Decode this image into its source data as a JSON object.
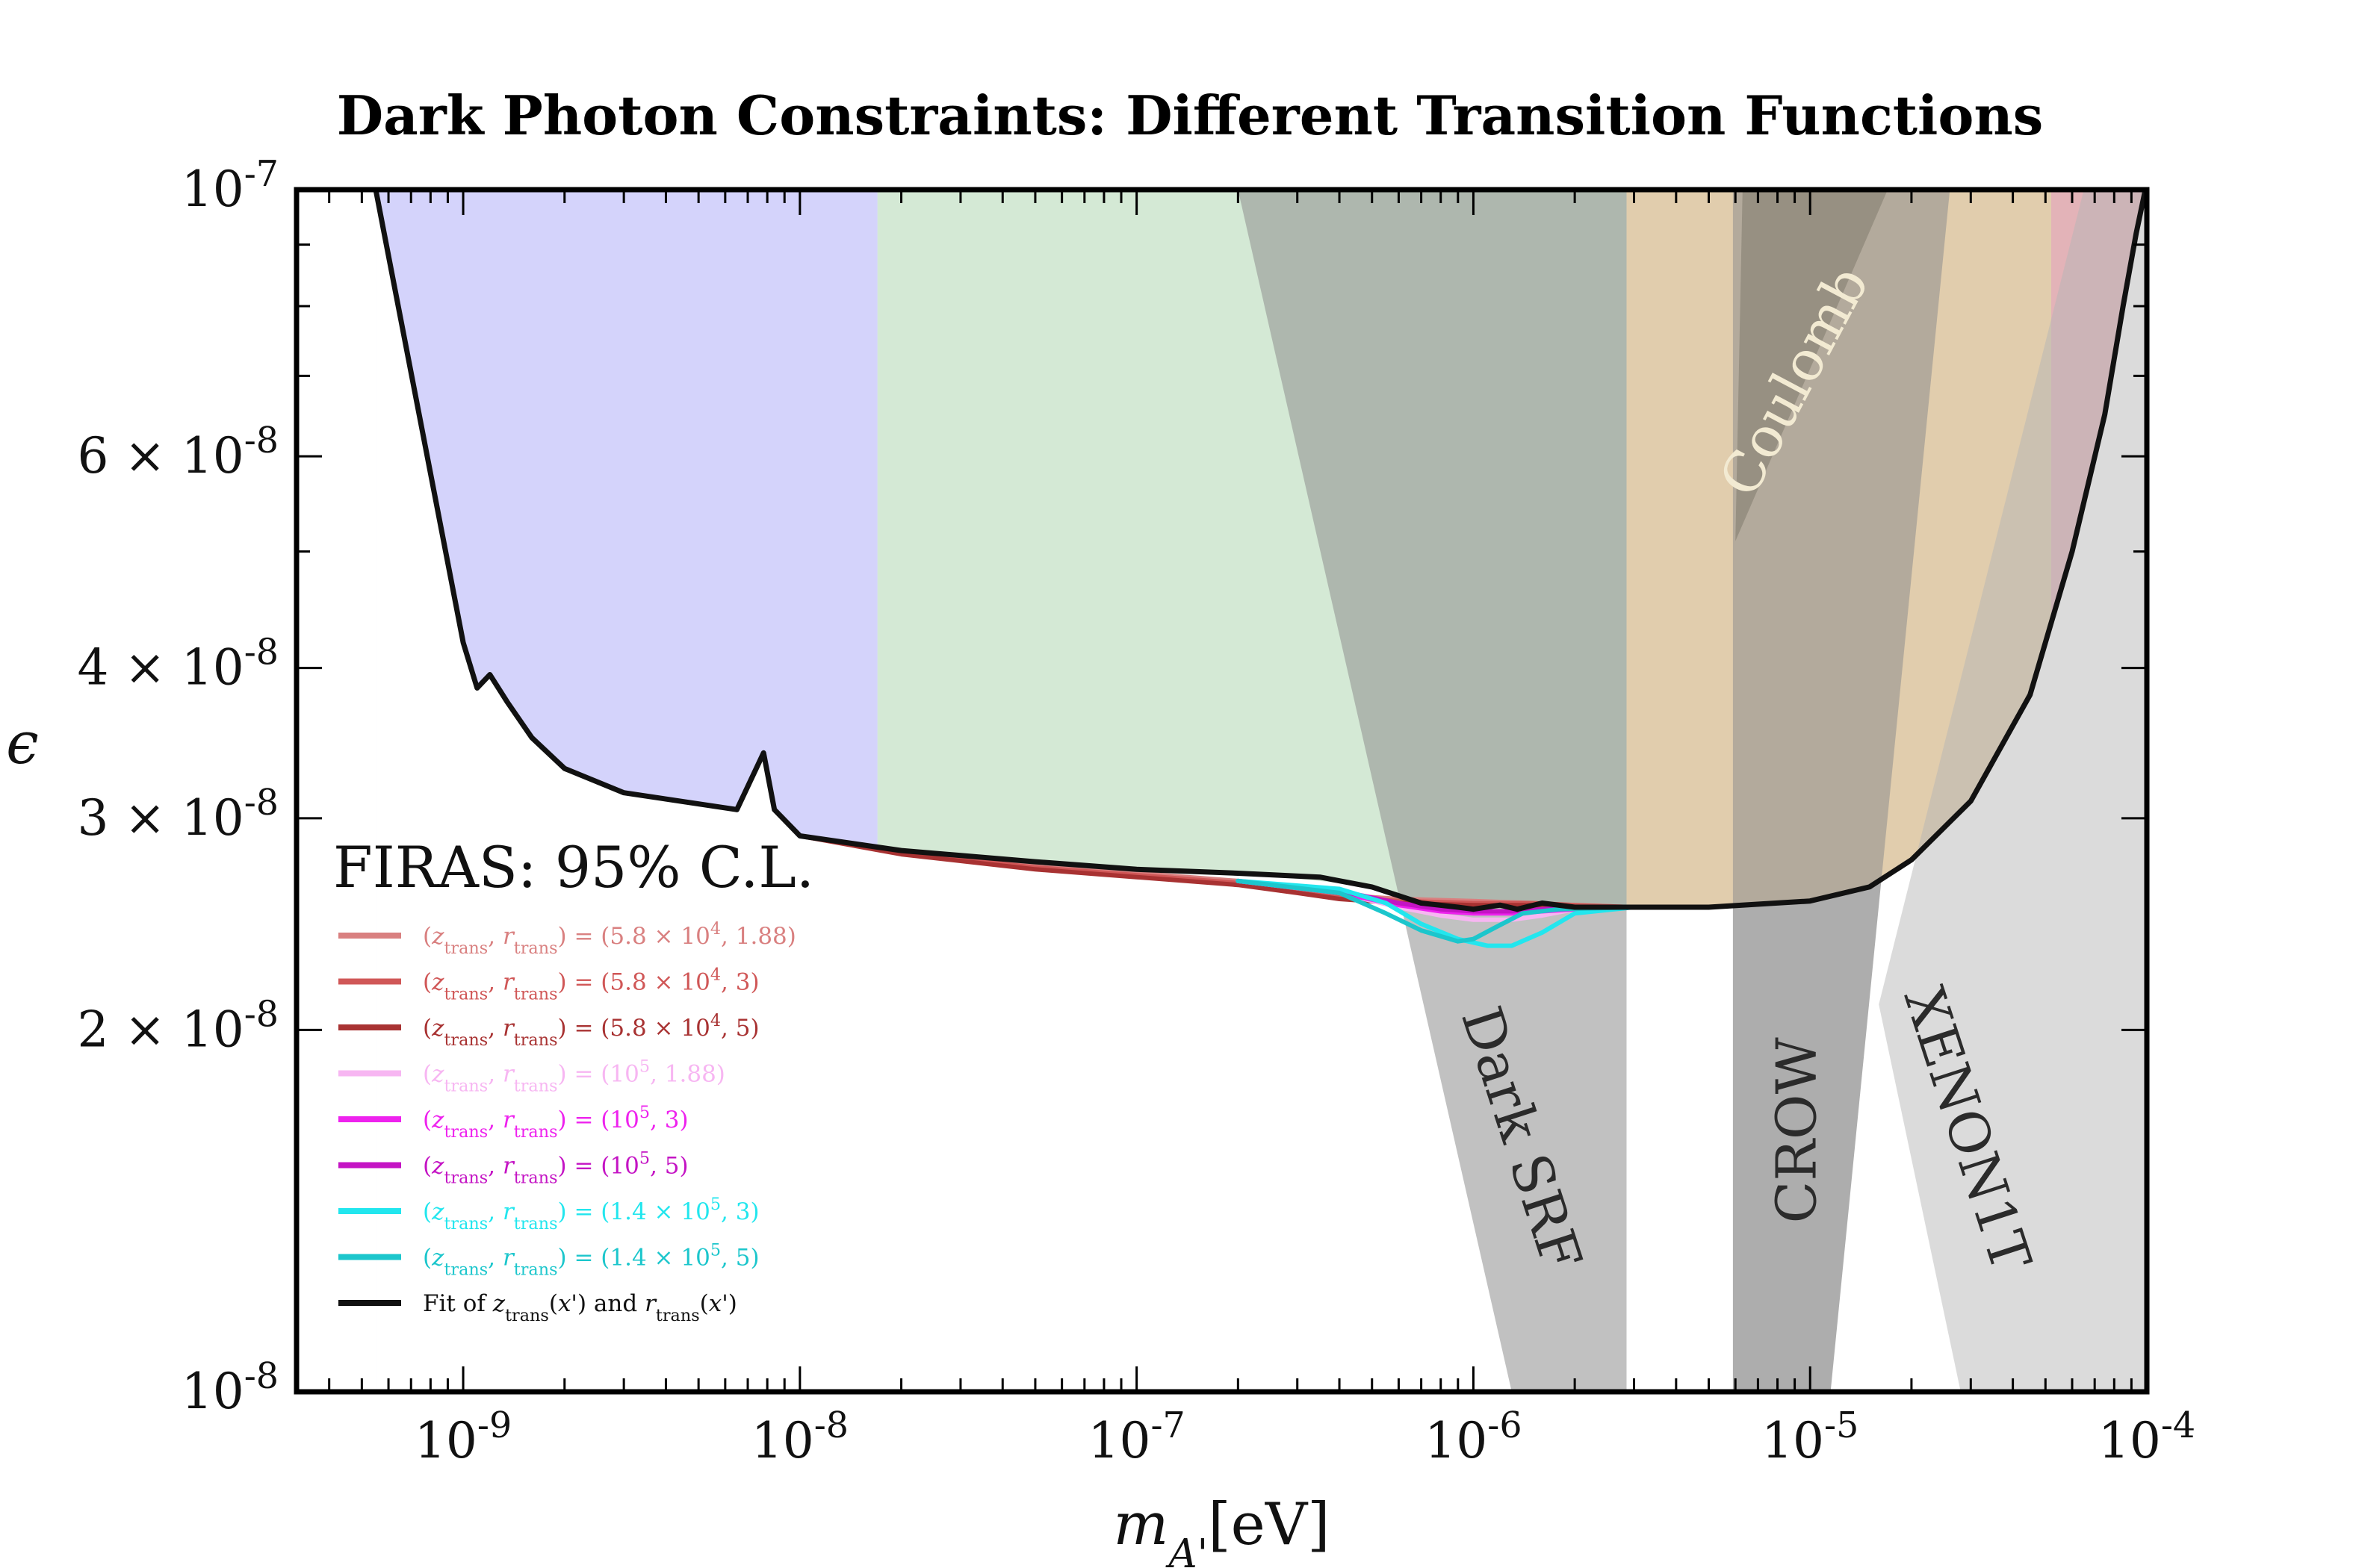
{
  "chart_data": {
    "type": "line",
    "title": "Dark Photon Constraints: Different Transition Functions",
    "xlabel": "m_A'[eV]",
    "ylabel": "ϵ",
    "x_scale": "log",
    "y_scale": "log",
    "xlim": [
      3.2e-10,
      0.0001
    ],
    "ylim": [
      1e-08,
      1e-07
    ],
    "grid": false,
    "x_ticks": [
      {
        "value": 1e-09,
        "label": "10^-9"
      },
      {
        "value": 1e-08,
        "label": "10^-8"
      },
      {
        "value": 1e-07,
        "label": "10^-7"
      },
      {
        "value": 1e-06,
        "label": "10^-6"
      },
      {
        "value": 1e-05,
        "label": "10^-5"
      },
      {
        "value": 0.0001,
        "label": "10^-4"
      }
    ],
    "y_ticks": [
      {
        "value": 1e-08,
        "label": "10^-8"
      },
      {
        "value": 2e-08,
        "label": "2 × 10^-8"
      },
      {
        "value": 3e-08,
        "label": "3 × 10^-8"
      },
      {
        "value": 4e-08,
        "label": "4 × 10^-8"
      },
      {
        "value": 6e-08,
        "label": "6 × 10^-8"
      },
      {
        "value": 1e-07,
        "label": "10^-7"
      }
    ],
    "regions": [
      {
        "id": "blue",
        "color": "#b0aff7",
        "opacity": 0.55,
        "polygon": [
          [
            3.2e-10,
            1e-07
          ],
          [
            1.7e-08,
            1e-07
          ],
          [
            1.7e-08,
            1e-08
          ],
          [
            3.2e-10,
            1e-08
          ]
        ]
      },
      {
        "id": "green",
        "color": "#a9d4ac",
        "opacity": 0.5,
        "polygon": [
          [
            1.7e-08,
            1e-07
          ],
          [
            2.85e-06,
            1e-07
          ],
          [
            2.85e-06,
            1e-08
          ],
          [
            1.7e-08,
            1e-08
          ]
        ]
      },
      {
        "id": "tan",
        "color": "#c8a469",
        "opacity": 0.55,
        "polygon": [
          [
            2.85e-06,
            1e-07
          ],
          [
            5.2e-05,
            1e-07
          ],
          [
            5.2e-05,
            1e-08
          ],
          [
            2.85e-06,
            1e-08
          ]
        ]
      },
      {
        "id": "red",
        "color": "#d99aa0",
        "opacity": 0.75,
        "polygon": [
          [
            5.2e-05,
            1e-07
          ],
          [
            0.0001,
            1e-07
          ],
          [
            0.0001,
            1e-08
          ],
          [
            5.2e-05,
            1e-08
          ]
        ]
      },
      {
        "id": "coulomb",
        "color": "#7a6a4e",
        "opacity": 0.6,
        "polygon": [
          [
            6.3e-06,
            1e-07
          ],
          [
            1.7e-05,
            1e-07
          ],
          [
            6e-06,
            5.1e-08
          ]
        ]
      },
      {
        "id": "dark-srf",
        "color": "#8e8e8e",
        "opacity": 0.55,
        "polygon": [
          [
            2e-07,
            1e-07
          ],
          [
            2.85e-06,
            1e-07
          ],
          [
            2.85e-06,
            1e-08
          ],
          [
            1.3e-06,
            1e-08
          ]
        ]
      },
      {
        "id": "crow",
        "color": "#8e8e8e",
        "opacity": 0.55,
        "polygon": [
          [
            5.9e-06,
            1e-07
          ],
          [
            2.6e-05,
            1e-07
          ],
          [
            1.15e-05,
            1e-08
          ],
          [
            5.9e-06,
            1e-08
          ]
        ]
      },
      {
        "id": "xenon1t",
        "color": "#b5b5b5",
        "opacity": 0.5,
        "polygon": [
          [
            6.5e-05,
            1e-07
          ],
          [
            0.0001,
            1e-07
          ],
          [
            0.0001,
            1e-08
          ],
          [
            2.8e-05,
            1e-08
          ],
          [
            1.6e-05,
            2.1e-08
          ]
        ]
      }
    ],
    "region_labels": [
      {
        "text": "Coulomb",
        "x": 9.2e-06,
        "y": 6.9e-08,
        "angle": -62,
        "color": "#f2ead2"
      },
      {
        "text": "Dark SRF",
        "x": 1.35e-06,
        "y": 1.62e-08,
        "angle": 72,
        "color": "#2b2b2b"
      },
      {
        "text": "CROW",
        "x": 9.4e-06,
        "y": 1.65e-08,
        "angle": -90,
        "color": "#2b2b2b"
      },
      {
        "text": "XENON1T",
        "x": 2.85e-05,
        "y": 1.65e-08,
        "angle": 72,
        "color": "#2b2b2b"
      }
    ],
    "limit_fill": {
      "x": [
        5.5e-10,
        1e-09,
        1.1e-09,
        1.2e-09,
        1.35e-09,
        1.6e-09,
        2e-09,
        3e-09,
        6.5e-09,
        7.8e-09,
        8.4e-09,
        1e-08,
        2e-08,
        5e-08,
        1e-07,
        2e-07,
        3.5e-07,
        5e-07,
        7e-07,
        1e-06,
        2e-06,
        3e-06,
        5e-06,
        1e-05,
        1.5e-05,
        2e-05,
        3e-05,
        4.5e-05,
        6e-05,
        7.5e-05,
        8.5e-05,
        9.3e-05,
        9.9e-05
      ],
      "y": [
        1e-07,
        4.2e-08,
        3.85e-08,
        3.95e-08,
        3.75e-08,
        3.5e-08,
        3.3e-08,
        3.15e-08,
        3.05e-08,
        3.4e-08,
        3.05e-08,
        2.9e-08,
        2.82e-08,
        2.76e-08,
        2.72e-08,
        2.7e-08,
        2.66e-08,
        2.63e-08,
        2.55e-08,
        2.52e-08,
        2.53e-08,
        2.53e-08,
        2.53e-08,
        2.56e-08,
        2.63e-08,
        2.77e-08,
        3.1e-08,
        3.8e-08,
        5e-08,
        6.5e-08,
        8e-08,
        9.2e-08,
        1e-07
      ]
    },
    "legend_title": "FIRAS: 95% C.L.",
    "legend_placement": "lower-left",
    "series": [
      {
        "name": "(z_trans, r_trans) = (5.8 × 10^4, 1.88)",
        "color": "#d98080",
        "x": [
          1e-08,
          2e-08,
          5e-08,
          1e-07,
          2e-07,
          3e-07,
          4e-07,
          6e-07,
          1e-06,
          1.5e-06,
          2e-06,
          3e-06
        ],
        "y": [
          2.9e-08,
          2.81e-08,
          2.74e-08,
          2.7e-08,
          2.66e-08,
          2.62e-08,
          2.59e-08,
          2.57e-08,
          2.56e-08,
          2.55e-08,
          2.54e-08,
          2.53e-08
        ]
      },
      {
        "name": "(z_trans, r_trans) = (5.8 × 10^4, 3)",
        "color": "#d05757",
        "x": [
          1e-08,
          2e-08,
          5e-08,
          1e-07,
          2e-07,
          3e-07,
          4e-07,
          6e-07,
          1e-06,
          1.5e-06,
          2e-06,
          3e-06
        ],
        "y": [
          2.9e-08,
          2.81e-08,
          2.73e-08,
          2.69e-08,
          2.65e-08,
          2.61e-08,
          2.58e-08,
          2.56e-08,
          2.55e-08,
          2.55e-08,
          2.54e-08,
          2.53e-08
        ]
      },
      {
        "name": "(z_trans, r_trans) = (5.8 × 10^4, 5)",
        "color": "#a83232",
        "x": [
          1e-08,
          2e-08,
          5e-08,
          1e-07,
          2e-07,
          3e-07,
          4e-07,
          6e-07,
          1e-06,
          1.5e-06,
          2e-06,
          3e-06
        ],
        "y": [
          2.9e-08,
          2.8e-08,
          2.72e-08,
          2.68e-08,
          2.64e-08,
          2.6e-08,
          2.57e-08,
          2.55e-08,
          2.54e-08,
          2.54e-08,
          2.53e-08,
          2.53e-08
        ]
      },
      {
        "name": "(z_trans, r_trans) = (10^5, 1.88)",
        "color": "#f7b6f2",
        "x": [
          2e-07,
          4e-07,
          6e-07,
          8e-07,
          1e-06,
          1.3e-06,
          1.6e-06,
          2e-06,
          3e-06
        ],
        "y": [
          2.66e-08,
          2.6e-08,
          2.53e-08,
          2.49e-08,
          2.47e-08,
          2.47e-08,
          2.49e-08,
          2.52e-08,
          2.53e-08
        ]
      },
      {
        "name": "(z_trans, r_trans) = (10^5, 3)",
        "color": "#ee22ee",
        "x": [
          2e-07,
          4e-07,
          6e-07,
          8e-07,
          1e-06,
          1.3e-06,
          1.6e-06,
          2e-06,
          3e-06
        ],
        "y": [
          2.66e-08,
          2.6e-08,
          2.54e-08,
          2.51e-08,
          2.5e-08,
          2.5e-08,
          2.51e-08,
          2.52e-08,
          2.53e-08
        ]
      },
      {
        "name": "(z_trans, r_trans) = (10^5, 5)",
        "color": "#c414c4",
        "x": [
          2e-07,
          4e-07,
          6e-07,
          8e-07,
          1e-06,
          1.3e-06,
          1.6e-06,
          2e-06,
          3e-06
        ],
        "y": [
          2.66e-08,
          2.61e-08,
          2.55e-08,
          2.52e-08,
          2.51e-08,
          2.51e-08,
          2.52e-08,
          2.53e-08,
          2.53e-08
        ]
      },
      {
        "name": "(z_trans, r_trans) = (1.4 × 10^5, 3)",
        "color": "#22e6ee",
        "x": [
          2e-07,
          4e-07,
          5.5e-07,
          7e-07,
          9e-07,
          1.1e-06,
          1.3e-06,
          1.6e-06,
          2e-06,
          3e-06
        ],
        "y": [
          2.66e-08,
          2.62e-08,
          2.55e-08,
          2.45e-08,
          2.38e-08,
          2.35e-08,
          2.35e-08,
          2.41e-08,
          2.5e-08,
          2.53e-08
        ]
      },
      {
        "name": "(z_trans, r_trans) = (1.4 × 10^5, 5)",
        "color": "#1cc6cc",
        "x": [
          2e-07,
          4e-07,
          5.5e-07,
          7e-07,
          9e-07,
          1e-06,
          1.15e-06,
          1.4e-06,
          1.8e-06,
          3e-06
        ],
        "y": [
          2.66e-08,
          2.6e-08,
          2.5e-08,
          2.42e-08,
          2.37e-08,
          2.38e-08,
          2.43e-08,
          2.5e-08,
          2.52e-08,
          2.53e-08
        ]
      },
      {
        "name": "Fit of z_trans(x') and r_trans(x')",
        "color": "#111111",
        "x": [
          5.5e-10,
          1e-09,
          1.1e-09,
          1.2e-09,
          1.35e-09,
          1.6e-09,
          2e-09,
          3e-09,
          6.5e-09,
          7.8e-09,
          8.4e-09,
          1e-08,
          2e-08,
          5e-08,
          1e-07,
          2e-07,
          3.5e-07,
          5e-07,
          7e-07,
          9e-07,
          1e-06,
          1.2e-06,
          1.35e-06,
          1.6e-06,
          2e-06,
          3e-06,
          5e-06,
          1e-05,
          1.5e-05,
          2e-05,
          3e-05,
          4.5e-05,
          6e-05,
          7.5e-05,
          8.5e-05,
          9.3e-05,
          9.9e-05
        ],
        "y": [
          1e-07,
          4.2e-08,
          3.85e-08,
          3.95e-08,
          3.75e-08,
          3.5e-08,
          3.3e-08,
          3.15e-08,
          3.05e-08,
          3.4e-08,
          3.05e-08,
          2.9e-08,
          2.82e-08,
          2.76e-08,
          2.72e-08,
          2.7e-08,
          2.68e-08,
          2.63e-08,
          2.55e-08,
          2.53e-08,
          2.52e-08,
          2.54e-08,
          2.52e-08,
          2.55e-08,
          2.53e-08,
          2.53e-08,
          2.53e-08,
          2.56e-08,
          2.63e-08,
          2.77e-08,
          3.1e-08,
          3.8e-08,
          5e-08,
          6.5e-08,
          8e-08,
          9.2e-08,
          1e-07
        ]
      }
    ]
  }
}
